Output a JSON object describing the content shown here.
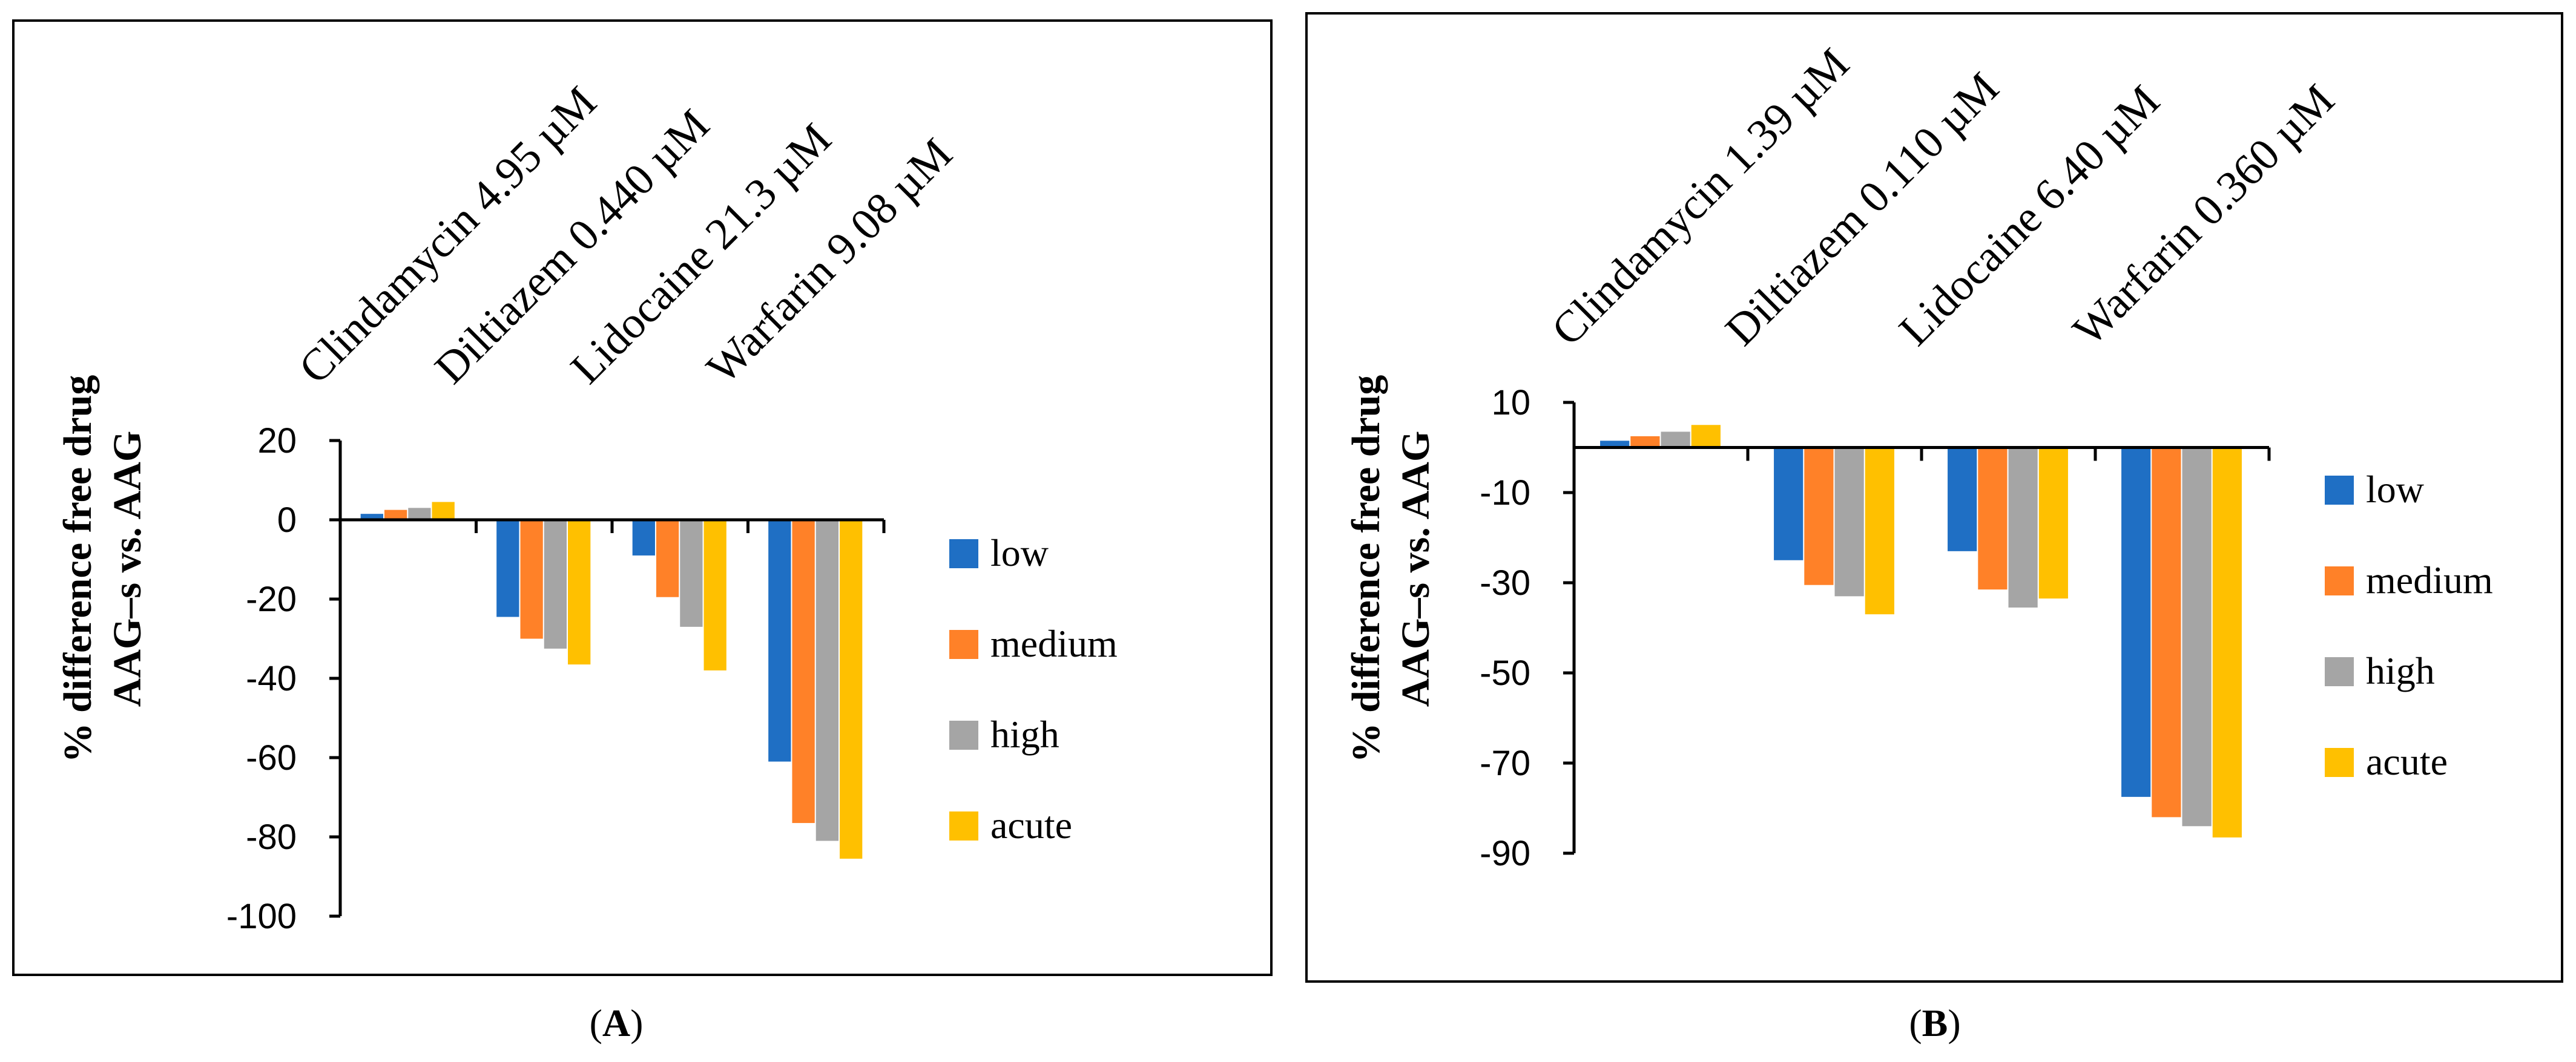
{
  "chart_data": [
    {
      "type": "bar",
      "panel_label": "A",
      "ylabel_lines": [
        "% difference free drug",
        "AAG–s vs. AAG"
      ],
      "categories": [
        "Clindamycin 4.95 µM",
        "Diltiazem 0.440 µM",
        "Lidocaine 21.3 µM",
        "Warfarin 9.08 µM"
      ],
      "series": [
        {
          "name": "low",
          "color": "#1f6fc4",
          "values": [
            1.5,
            -24.5,
            -9,
            -61
          ]
        },
        {
          "name": "medium",
          "color": "#ff8128",
          "values": [
            2.5,
            -30,
            -19.5,
            -76.5
          ]
        },
        {
          "name": "high",
          "color": "#a5a5a5",
          "values": [
            3,
            -32.5,
            -27,
            -81
          ]
        },
        {
          "name": "acute",
          "color": "#ffc000",
          "values": [
            4.5,
            -36.5,
            -38,
            -85.5
          ]
        }
      ],
      "yticks": [
        20,
        0,
        -20,
        -40,
        -60,
        -80,
        -100
      ],
      "ylim": [
        -100,
        20
      ],
      "legend": "right",
      "grid": false
    },
    {
      "type": "bar",
      "panel_label": "B",
      "ylabel_lines": [
        "% difference free drug",
        "AAG–s vs. AAG"
      ],
      "categories": [
        "Clindamycin 1.39 µM",
        "Diltiazem 0.110 µM",
        "Lidocaine 6.40 µM",
        "Warfarin 0.360 µM"
      ],
      "series": [
        {
          "name": "low",
          "color": "#1f6fc4",
          "values": [
            1.5,
            -25,
            -23,
            -77.5
          ]
        },
        {
          "name": "medium",
          "color": "#ff8128",
          "values": [
            2.5,
            -30.5,
            -31.5,
            -82
          ]
        },
        {
          "name": "high",
          "color": "#a5a5a5",
          "values": [
            3.5,
            -33,
            -35.5,
            -84
          ]
        },
        {
          "name": "acute",
          "color": "#ffc000",
          "values": [
            5,
            -37,
            -33.5,
            -86.5
          ]
        }
      ],
      "yticks": [
        10,
        -10,
        -30,
        -50,
        -70,
        -90
      ],
      "ylim": [
        -90,
        10
      ],
      "legend": "right",
      "grid": false
    }
  ]
}
